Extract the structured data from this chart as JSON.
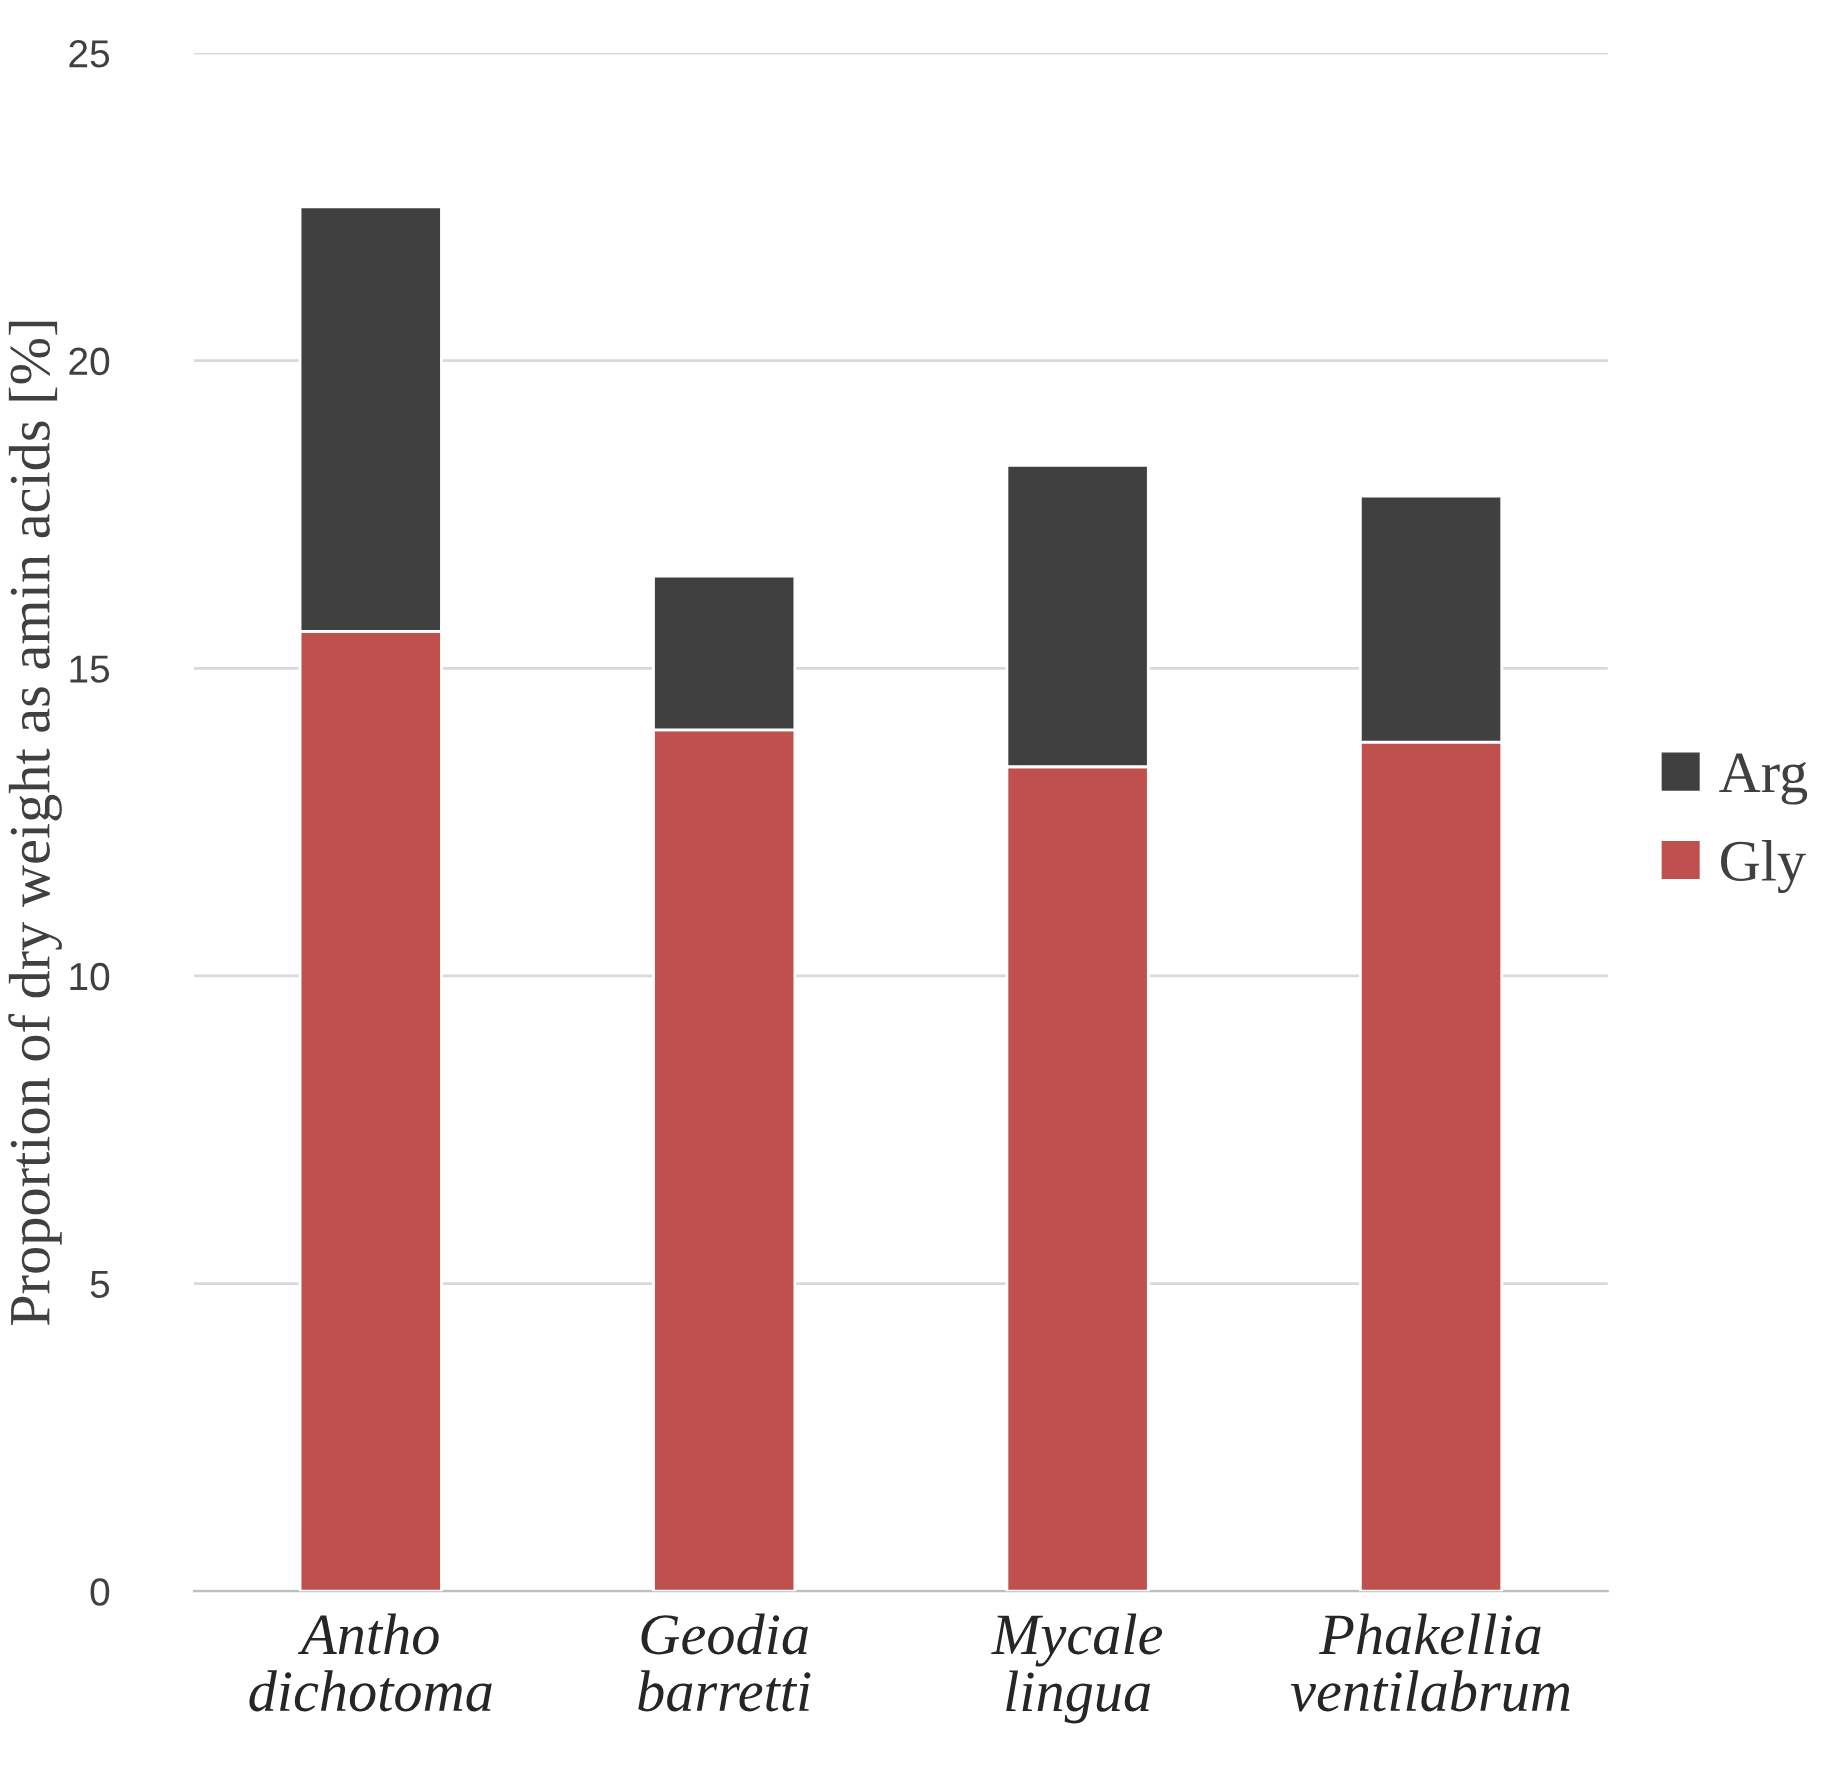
{
  "chart_data": {
    "type": "bar",
    "stacked": true,
    "ylabel": "Proportion of dry weight as amin acids [%]",
    "categories": [
      "Antho dichotoma",
      "Geodia barretti",
      "Mycale lingua",
      "Phakellia ventilabrum"
    ],
    "series": [
      {
        "name": "Gly",
        "color": "#c0504d",
        "values": [
          15.6,
          14.0,
          13.4,
          13.8
        ]
      },
      {
        "name": "Arg",
        "color": "#404040",
        "values": [
          6.9,
          2.5,
          4.9,
          4.0
        ]
      }
    ],
    "ylim": [
      0,
      25
    ],
    "yticks": [
      0,
      5,
      10,
      15,
      20,
      25
    ],
    "grid": "y",
    "legend": "right"
  }
}
